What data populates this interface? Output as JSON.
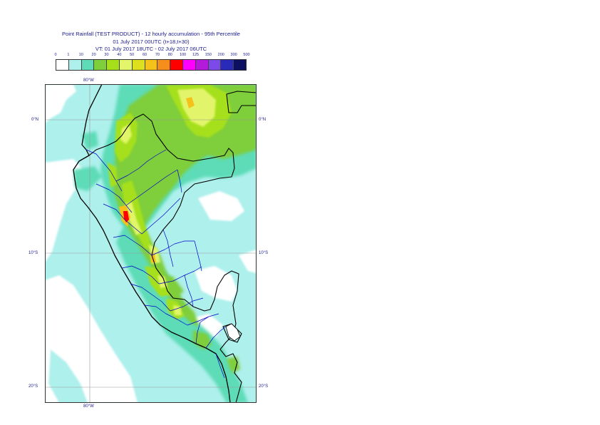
{
  "title": {
    "line1": "Point Rainfall (TEST PRODUCT) - 12 hourly accumulation - 95th Percentile",
    "line2": "01 July 2017 00UTC (t+18,t+30)",
    "line3": "VT: 01 July 2017 18UTC - 02 July 2017 06UTC"
  },
  "legend": {
    "ticks": [
      "0",
      "1",
      "10",
      "20",
      "30",
      "40",
      "50",
      "60",
      "70",
      "80",
      "100",
      "125",
      "150",
      "200",
      "300",
      "500"
    ],
    "colors": [
      "#ffffff",
      "#aef0ec",
      "#5ddcb7",
      "#7fce3b",
      "#a6e01a",
      "#e2f56b",
      "#dde01c",
      "#f4c21a",
      "#f58e1c",
      "#ff0000",
      "#ff00ff",
      "#b41ad9",
      "#7b4ae8",
      "#2a2ab8",
      "#0d1060"
    ]
  },
  "axes": {
    "lon_top": "80°W",
    "lon_bottom": "80°W",
    "lat_0_left": "0°N",
    "lat_0_right": "0°N",
    "lat_10_left": "10°S",
    "lat_10_right": "10°S",
    "lat_20_left": "20°S",
    "lat_20_right": "20°S"
  },
  "map": {
    "ocean_color": "#ffffff",
    "coast_color": "#000000",
    "border_color": "#0000cc",
    "grid_color": "#9a9a9a"
  }
}
